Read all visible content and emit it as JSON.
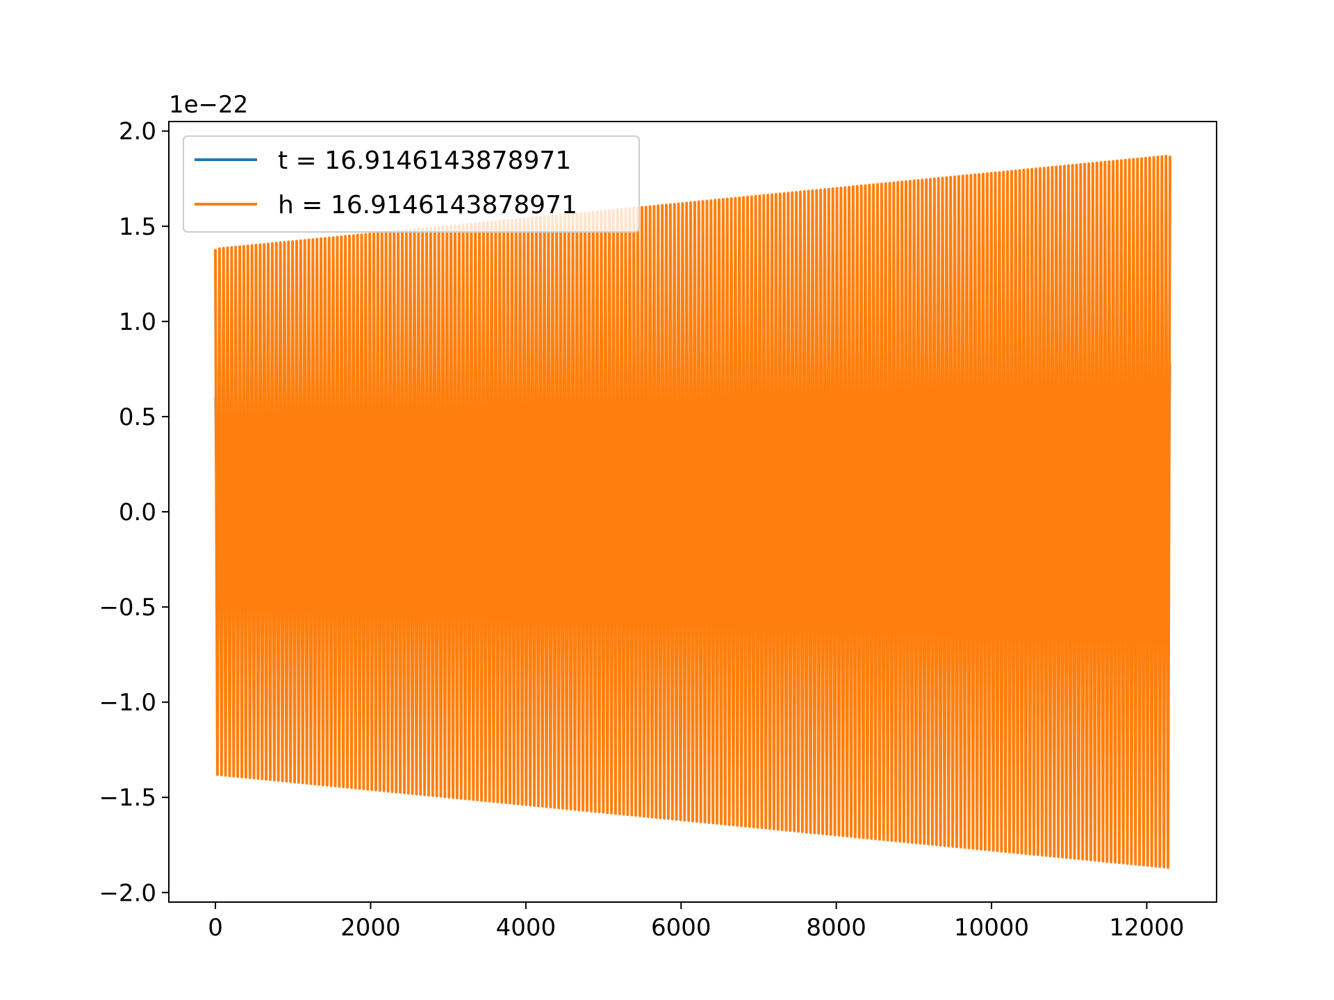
{
  "chart_data": {
    "type": "line",
    "title": "",
    "xlabel": "",
    "ylabel": "",
    "offset_label": "1e−22",
    "xlim": [
      -600,
      12900
    ],
    "ylim": [
      -2.05,
      2.05
    ],
    "x_ticks": [
      0,
      2000,
      4000,
      6000,
      8000,
      10000,
      12000
    ],
    "x_tick_labels": [
      "0",
      "2000",
      "4000",
      "6000",
      "8000",
      "10000",
      "12000"
    ],
    "y_ticks": [
      -2.0,
      -1.5,
      -1.0,
      -0.5,
      0.0,
      0.5,
      1.0,
      1.5,
      2.0
    ],
    "y_tick_labels": [
      "−2.0",
      "−1.5",
      "−1.0",
      "−0.5",
      "0.0",
      "0.5",
      "1.0",
      "1.5",
      "2.0"
    ],
    "grid": false,
    "legend_position": "upper-left",
    "series": [
      {
        "name": "t = 16.9146143878971",
        "color": "#1f77b4",
        "x_range": [
          0,
          12300
        ],
        "envelope_start": 0.6,
        "envelope_end": 0.78,
        "cycles": 235
      },
      {
        "name": "h = 16.9146143878971",
        "color": "#ff7f0e",
        "x_range": [
          0,
          12300
        ],
        "envelope_start": 1.38,
        "envelope_end": 1.87,
        "cycles": 235
      }
    ]
  }
}
